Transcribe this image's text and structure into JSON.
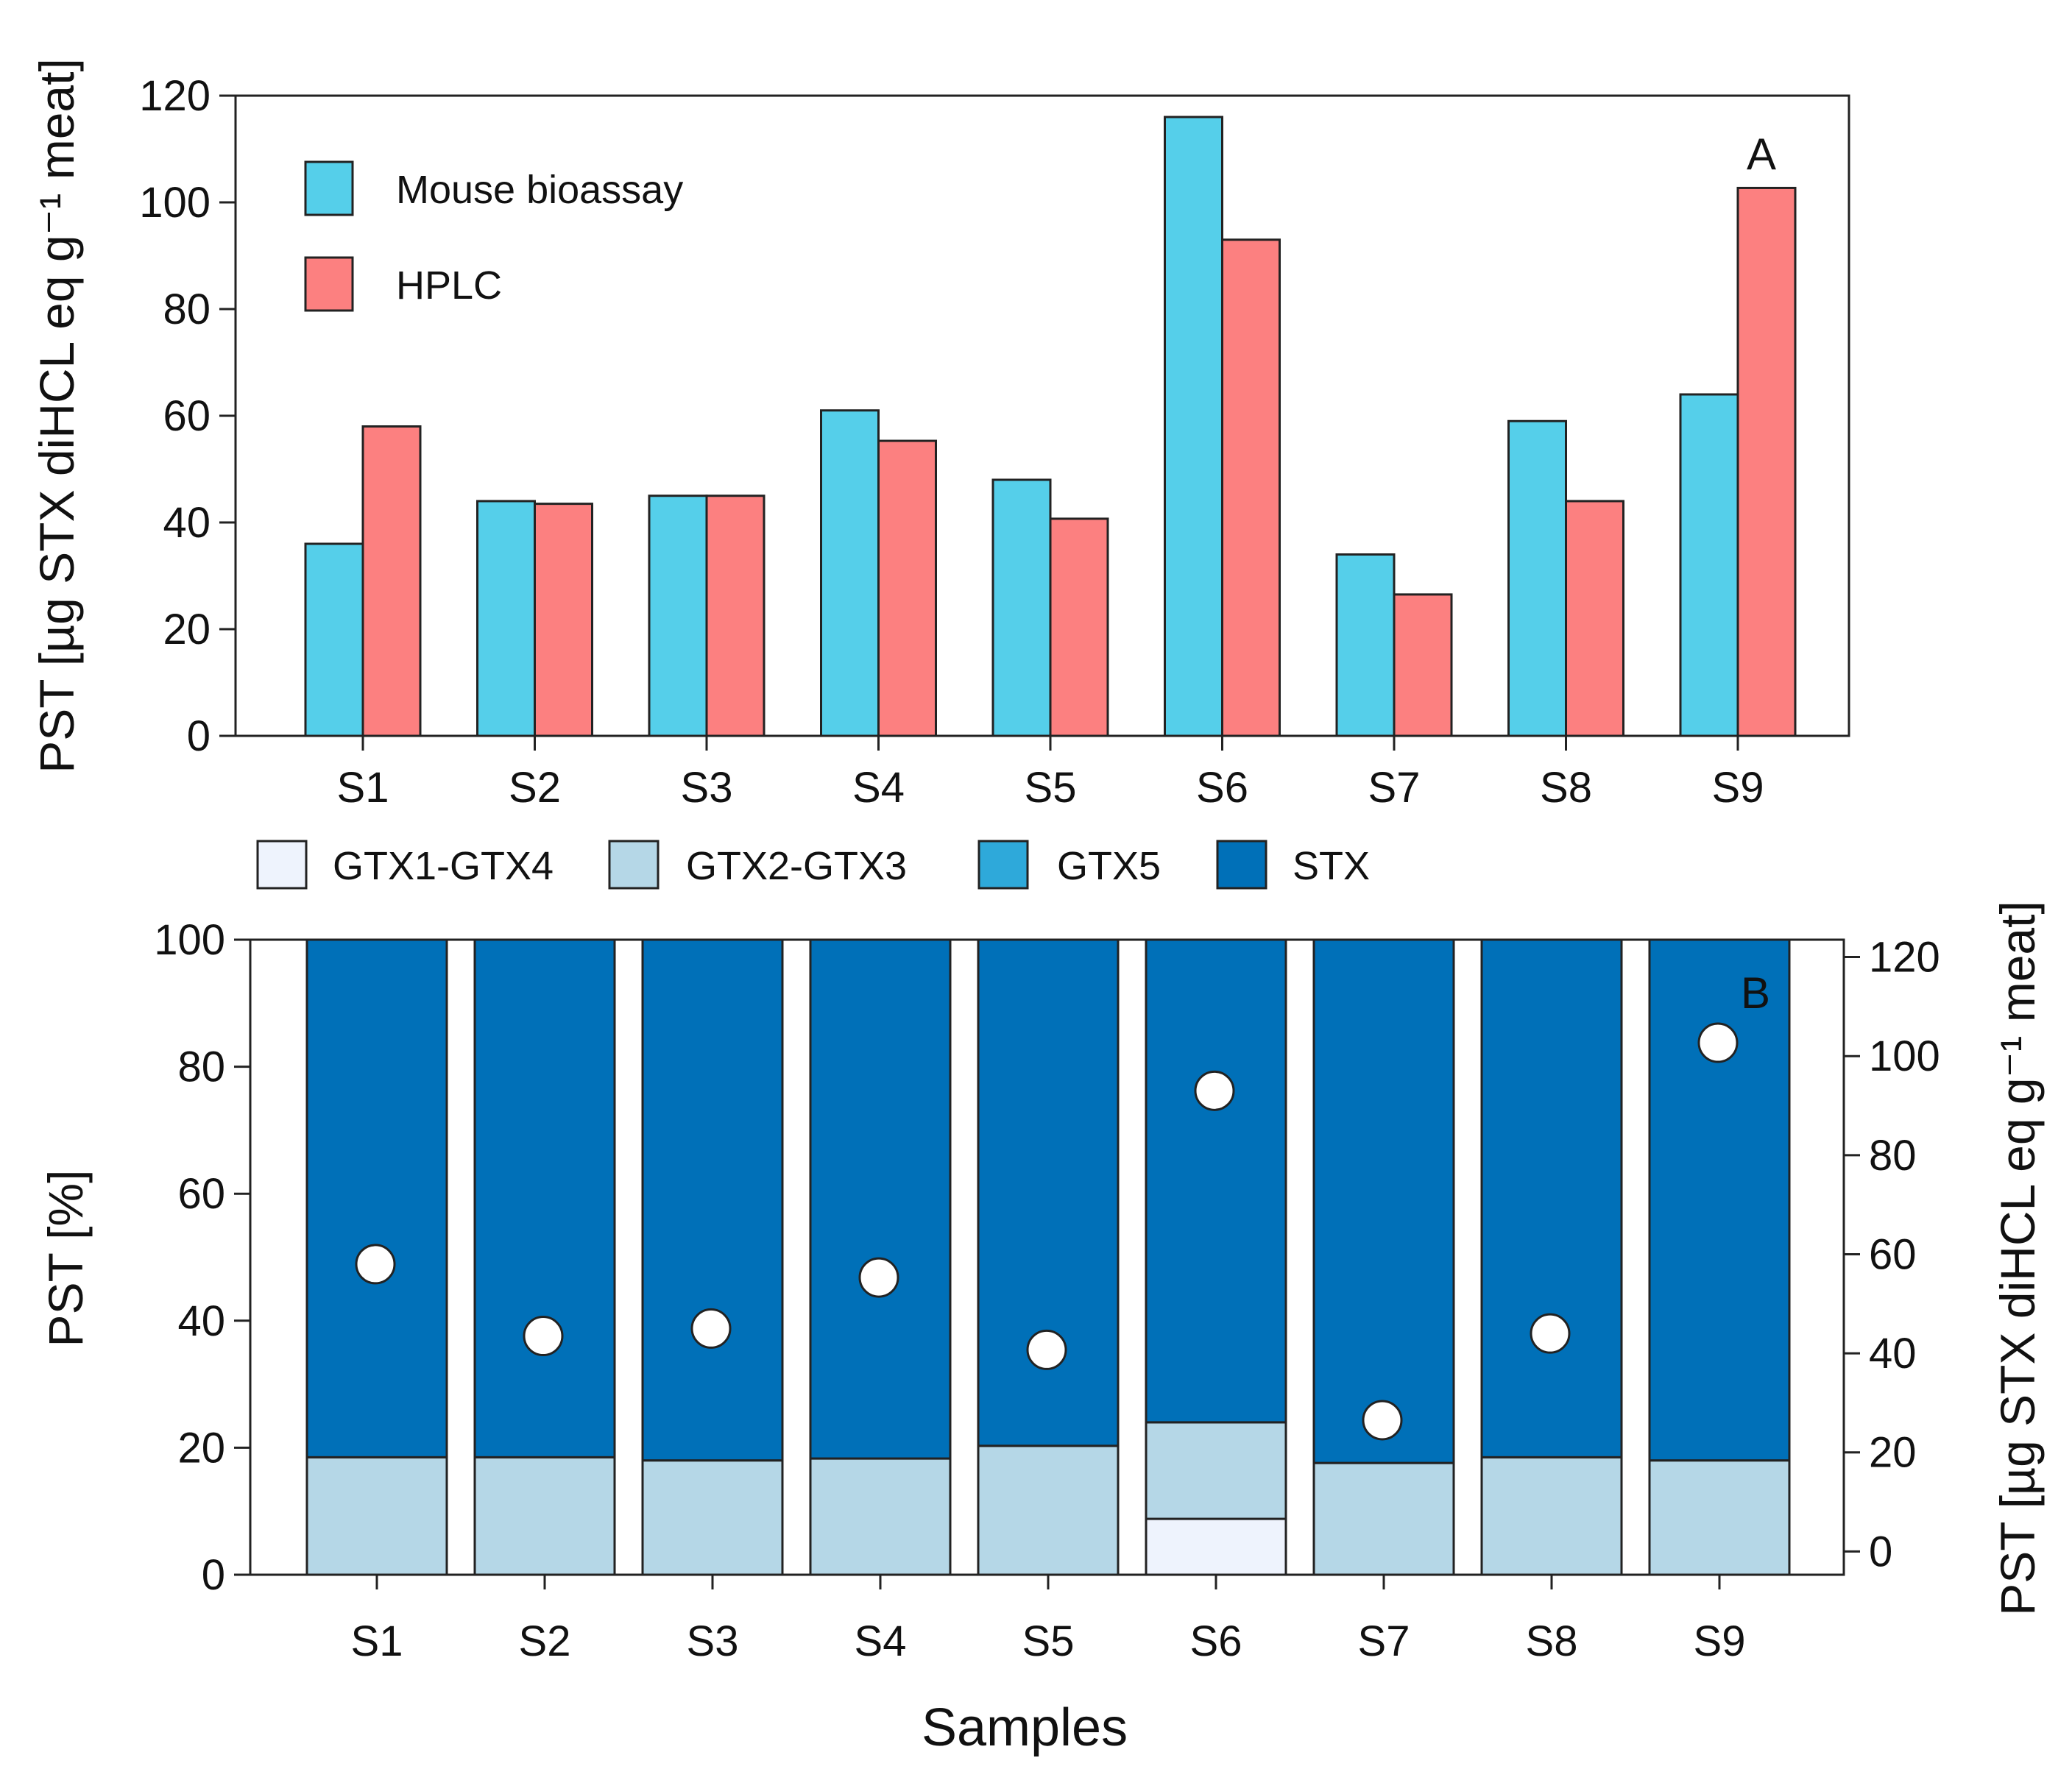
{
  "chart_data": [
    {
      "type": "bar",
      "panel_label": "A",
      "categories": [
        "S1",
        "S2",
        "S3",
        "S4",
        "S5",
        "S6",
        "S7",
        "S8",
        "S9"
      ],
      "ylabel": "PST [µg STX diHCL eq g⁻¹ meat]",
      "ylim": [
        0,
        120
      ],
      "yticks": [
        0,
        20,
        40,
        60,
        80,
        100,
        120
      ],
      "legend_position": "top-left",
      "series": [
        {
          "name": "Mouse bioassay",
          "color": "#55CFEA",
          "values": [
            36,
            44,
            45,
            61,
            48,
            116,
            34,
            59,
            64
          ]
        },
        {
          "name": "HPLC",
          "color": "#FC8080",
          "values": [
            58,
            43.5,
            45,
            55.3,
            40.7,
            93,
            26.5,
            44,
            102.7
          ]
        }
      ]
    },
    {
      "type": "bar",
      "stacked": true,
      "panel_label": "B",
      "categories": [
        "S1",
        "S2",
        "S3",
        "S4",
        "S5",
        "S6",
        "S7",
        "S8",
        "S9"
      ],
      "ylabel": "PST [%]",
      "ylim": [
        0,
        100
      ],
      "yticks": [
        0,
        20,
        40,
        60,
        80,
        100
      ],
      "xlabel": "Samples",
      "legend_position": "top",
      "series": [
        {
          "name": "GTX1-GTX4",
          "color": "#EEF3FD",
          "values": [
            0,
            0,
            0,
            0,
            0,
            8.8,
            0,
            0,
            0
          ]
        },
        {
          "name": "GTX2-GTX3",
          "color": "#B5D7E7",
          "values": [
            18.5,
            18.5,
            18,
            18.3,
            20.3,
            15.2,
            17.6,
            18.5,
            18
          ]
        },
        {
          "name": "GTX5",
          "color": "#2EA9DA",
          "values": [
            0,
            0,
            0,
            0,
            0,
            0,
            0,
            0,
            0
          ]
        },
        {
          "name": "STX",
          "color": "#0070B8",
          "values": [
            81.5,
            81.5,
            82,
            81.7,
            79.7,
            76,
            82.4,
            81.5,
            82
          ]
        }
      ],
      "secondary_axis": {
        "ylabel": "PST [µg STX diHCL eq g⁻¹ meat]",
        "ylim": [
          -4.7,
          123.5
        ],
        "yticks": [
          0,
          20,
          40,
          60,
          80,
          100,
          120
        ],
        "points": [
          58,
          43.5,
          45,
          55.3,
          40.7,
          93,
          26.5,
          44,
          102.7
        ]
      }
    }
  ]
}
